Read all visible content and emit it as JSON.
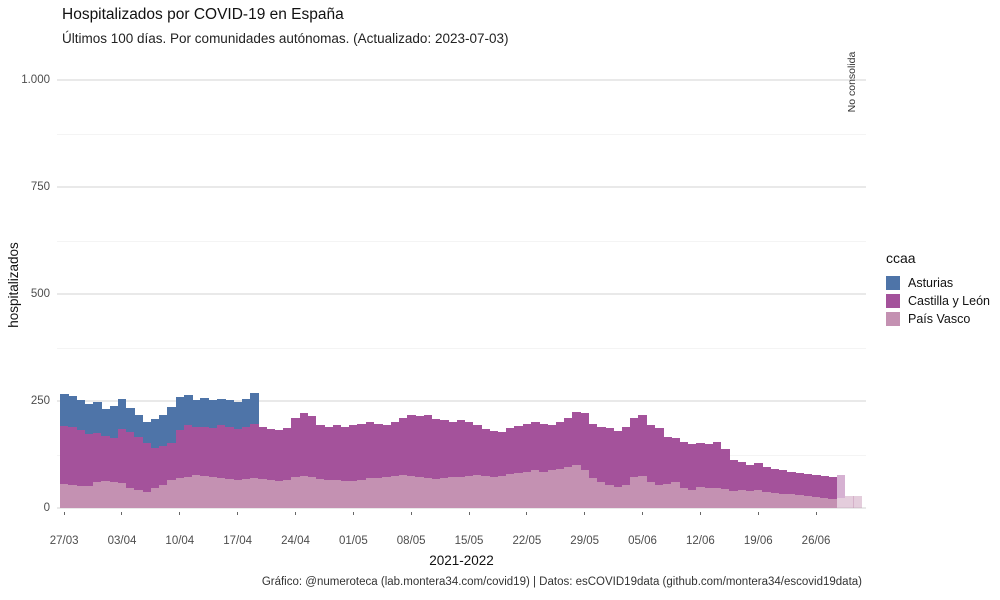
{
  "header": {
    "title": "Hospitalizados por COVID-19 en España",
    "subtitle": "Últimos 100 días. Por comunidades autónomas. (Actualizado: 2023-07-03)"
  },
  "caption": "Gráfico: @numeroteca (lab.montera34.com/covid19) | Datos: esCOVID19data (github.com/montera34/escovid19data)",
  "annotation": {
    "not_consolidated_label": "No consolida"
  },
  "chart_data": {
    "type": "bar",
    "stacked": true,
    "title": "Hospitalizados por COVID-19 en España",
    "subtitle": "Últimos 100 días. Por comunidades autónomas. (Actualizado: 2023-07-03)",
    "xlabel": "2021-2022",
    "ylabel": "hospitalizados",
    "ylim": [
      0,
      1050
    ],
    "grid": "major and minor horizontal gridlines, light gray on white",
    "legend_position": "right",
    "legend_title": "ccaa",
    "y_ticks": [
      {
        "value": 0,
        "label": "0"
      },
      {
        "value": 250,
        "label": "250"
      },
      {
        "value": 500,
        "label": "500"
      },
      {
        "value": 750,
        "label": "750"
      },
      {
        "value": 1000,
        "label": "1.000"
      }
    ],
    "y_minor_ticks": [
      125,
      375,
      625,
      875
    ],
    "x_tick_indices": [
      0,
      7,
      14,
      21,
      28,
      35,
      42,
      49,
      56,
      63,
      70,
      77,
      84,
      91
    ],
    "x_tick_labels": [
      "27/03",
      "03/04",
      "10/04",
      "17/04",
      "24/04",
      "01/05",
      "08/05",
      "15/05",
      "22/05",
      "29/05",
      "05/06",
      "12/06",
      "19/06",
      "26/06"
    ],
    "dates": [
      "27/03",
      "28/03",
      "29/03",
      "30/03",
      "31/03",
      "01/04",
      "02/04",
      "03/04",
      "04/04",
      "05/04",
      "06/04",
      "07/04",
      "08/04",
      "09/04",
      "10/04",
      "11/04",
      "12/04",
      "13/04",
      "14/04",
      "15/04",
      "16/04",
      "17/04",
      "18/04",
      "19/04",
      "20/04",
      "21/04",
      "22/04",
      "23/04",
      "24/04",
      "25/04",
      "26/04",
      "27/04",
      "28/04",
      "29/04",
      "30/04",
      "01/05",
      "02/05",
      "03/05",
      "04/05",
      "05/05",
      "06/05",
      "07/05",
      "08/05",
      "09/05",
      "10/05",
      "11/05",
      "12/05",
      "13/05",
      "14/05",
      "15/05",
      "16/05",
      "17/05",
      "18/05",
      "19/05",
      "20/05",
      "21/05",
      "22/05",
      "23/05",
      "24/05",
      "25/05",
      "26/05",
      "27/05",
      "28/05",
      "29/05",
      "30/05",
      "31/05",
      "01/06",
      "02/06",
      "03/06",
      "04/06",
      "05/06",
      "06/06",
      "07/06",
      "08/06",
      "09/06",
      "10/06",
      "11/06",
      "12/06",
      "13/06",
      "14/06",
      "15/06",
      "16/06",
      "17/06",
      "18/06",
      "19/06",
      "20/06",
      "21/06",
      "22/06",
      "23/06",
      "24/06",
      "25/06",
      "26/06",
      "27/06",
      "28/06",
      "29/06",
      "30/06",
      "01/07"
    ],
    "stack_order_bottom_to_top": [
      "País Vasco",
      "Castilla y León",
      "Asturias"
    ],
    "not_consolidated_from_index": 94,
    "faded_opacity": 0.45,
    "series": [
      {
        "name": "Asturias",
        "color": "#4e74a8",
        "values": [
          74,
          73,
          70,
          71,
          72,
          64,
          75,
          70,
          56,
          51,
          49,
          68,
          73,
          84,
          77,
          70,
          63,
          67,
          64,
          61,
          62,
          63,
          65,
          72,
          0,
          0,
          0,
          0,
          0,
          0,
          0,
          0,
          0,
          0,
          0,
          0,
          0,
          0,
          0,
          0,
          0,
          0,
          0,
          0,
          0,
          0,
          0,
          0,
          0,
          0,
          0,
          0,
          0,
          0,
          0,
          0,
          0,
          0,
          0,
          0,
          0,
          0,
          0,
          0,
          0,
          0,
          0,
          0,
          0,
          0,
          0,
          0,
          0,
          0,
          0,
          0,
          0,
          0,
          0,
          0,
          0,
          0,
          0,
          0,
          0,
          0,
          0,
          0,
          0,
          0,
          0,
          0,
          0,
          0,
          0,
          0,
          0
        ]
      },
      {
        "name": "Castilla y León",
        "color": "#a4529b",
        "values": [
          135,
          135,
          131,
          121,
          114,
          104,
          103,
          126,
          130,
          124,
          114,
          94,
          91,
          87,
          112,
          122,
          112,
          116,
          116,
          124,
          122,
          119,
          123,
          126,
          122,
          120,
          120,
          121,
          138,
          148,
          142,
          127,
          124,
          128,
          127,
          129,
          131,
          130,
          126,
          121,
          125,
          132,
          144,
          143,
          148,
          139,
          135,
          128,
          133,
          125,
          117,
          110,
          107,
          103,
          108,
          110,
          111,
          112,
          111,
          107,
          108,
          114,
          125,
          134,
          126,
          129,
          133,
          130,
          135,
          138,
          143,
          133,
          133,
          110,
          103,
          108,
          107,
          103,
          103,
          109,
          94,
          72,
          66,
          60,
          63,
          58,
          55,
          55,
          53,
          52,
          52,
          52,
          51,
          52,
          54,
          0,
          0
        ]
      },
      {
        "name": "País Vasco",
        "color": "#c491b2",
        "values": [
          57,
          54,
          51,
          51,
          61,
          64,
          61,
          58,
          47,
          42,
          38,
          47,
          54,
          65,
          70,
          72,
          77,
          74,
          72,
          70,
          68,
          66,
          67,
          70,
          68,
          65,
          63,
          65,
          72,
          74,
          72,
          68,
          66,
          65,
          63,
          64,
          66,
          70,
          70,
          72,
          75,
          78,
          74,
          72,
          70,
          68,
          70,
          72,
          72,
          75,
          78,
          75,
          73,
          75,
          80,
          82,
          85,
          88,
          85,
          88,
          92,
          96,
          100,
          88,
          70,
          60,
          54,
          50,
          54,
          72,
          74,
          61,
          54,
          56,
          60,
          47,
          42,
          49,
          47,
          46,
          44,
          40,
          42,
          40,
          42,
          38,
          35,
          33,
          32,
          30,
          28,
          26,
          24,
          20,
          23,
          27,
          27
        ]
      }
    ]
  }
}
